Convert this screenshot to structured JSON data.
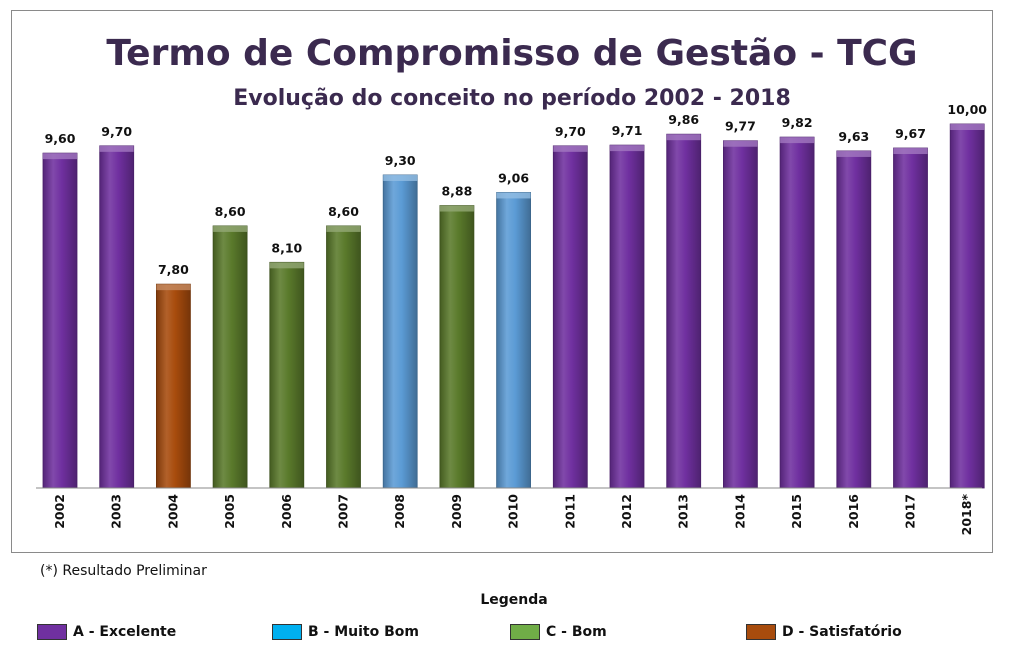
{
  "chart_data": {
    "type": "bar",
    "title": "Termo de Compromisso de Gestão - TCG",
    "subtitle": "Evolução do conceito no período 2002 - 2018",
    "categories": [
      "2002",
      "2003",
      "2004",
      "2005",
      "2006",
      "2007",
      "2008",
      "2009",
      "2010",
      "2011",
      "2012",
      "2013",
      "2014",
      "2015",
      "2016",
      "2017",
      "2018*"
    ],
    "values": [
      9.6,
      9.7,
      7.8,
      8.6,
      8.1,
      8.6,
      9.3,
      8.88,
      9.06,
      9.7,
      9.71,
      9.86,
      9.77,
      9.82,
      9.63,
      9.67,
      10.0
    ],
    "value_labels": [
      "9,60",
      "9,70",
      "7,80",
      "8,60",
      "8,10",
      "8,60",
      "9,30",
      "8,88",
      "9,06",
      "9,70",
      "9,71",
      "9,86",
      "9,77",
      "9,82",
      "9,63",
      "9,67",
      "10,00"
    ],
    "grades": [
      "A",
      "A",
      "D",
      "C",
      "C",
      "C",
      "B",
      "C",
      "B",
      "A",
      "A",
      "A",
      "A",
      "A",
      "A",
      "A",
      "A"
    ],
    "ylim": [
      5.0,
      10.0
    ],
    "xlabel": "",
    "ylabel": "",
    "grid": false
  },
  "grade_colors": {
    "A": "#7030a0",
    "B": "#5b9bd5",
    "C": "#5a7a2b",
    "D": "#a84c0d"
  },
  "note": "(*) Resultado Preliminar",
  "legend": {
    "title": "Legenda",
    "items": [
      {
        "label": "A - Excelente",
        "color": "#7030a0"
      },
      {
        "label": "B - Muito Bom",
        "color": "#00b0f0"
      },
      {
        "label": "C - Bom",
        "color": "#70ad47"
      },
      {
        "label": "D - Satisfatório",
        "color": "#a84c0d"
      }
    ]
  }
}
